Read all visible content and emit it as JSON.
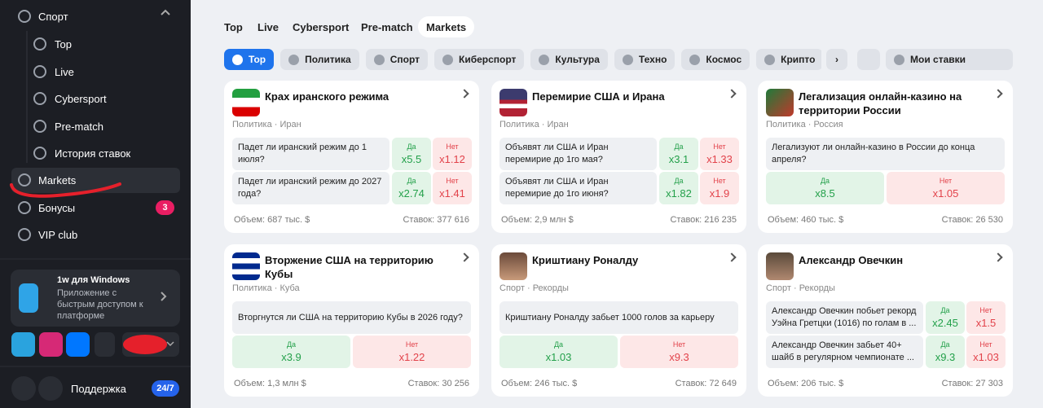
{
  "sidebar": {
    "sport": "Спорт",
    "items": [
      "Top",
      "Live",
      "Cybersport",
      "Pre-match",
      "История ставок"
    ],
    "main_items": [
      {
        "label": "Markets"
      },
      {
        "label": "Бонусы",
        "badge": "3"
      },
      {
        "label": "VIP club"
      }
    ],
    "promo": {
      "title": "1w для Windows",
      "text": "Приложение с быстрым доступом к платформе"
    },
    "support": {
      "label": "Поддержка",
      "badge": "24/7"
    }
  },
  "tabs": {
    "items": [
      "Top",
      "Live",
      "Cybersport",
      "Pre-match",
      "Markets"
    ],
    "active": 4
  },
  "filters": {
    "items": [
      "Top",
      "Политика",
      "Спорт",
      "Киберспорт",
      "Культура",
      "Техно",
      "Космос",
      "Крипто"
    ],
    "active": 0,
    "my_bets": "Мои ставки"
  },
  "cards": [
    {
      "title": "Крах иранского режима",
      "category": "Политика · Иран",
      "markets": [
        {
          "question": "Падет ли иранский режим до 1 июля?",
          "yes": "Да",
          "yes_odds": "x5.5",
          "no": "Нет",
          "no_odds": "x1.12"
        },
        {
          "question": "Падет ли иранский режим до 2027 года?",
          "yes": "Да",
          "yes_odds": "x2.74",
          "no": "Нет",
          "no_odds": "x1.41"
        }
      ],
      "volume": "Объем: 687 тыс. $",
      "bets": "Ставок: 377 616"
    },
    {
      "title": "Перемирие США и Ирана",
      "category": "Политика · Иран",
      "markets": [
        {
          "question": "Объявят ли США и Иран перемирие до 1го мая?",
          "yes": "Да",
          "yes_odds": "x3.1",
          "no": "Нет",
          "no_odds": "x1.33"
        },
        {
          "question": "Объявят ли США и Иран перемирие до 1го июня?",
          "yes": "Да",
          "yes_odds": "x1.82",
          "no": "Нет",
          "no_odds": "x1.9"
        }
      ],
      "volume": "Объем: 2,9 млн $",
      "bets": "Ставок: 216 235"
    },
    {
      "title": "Легализация онлайн-казино на территории России",
      "category": "Политика · Россия",
      "markets": [
        {
          "question": "Легализуют ли онлайн-казино в России до конца апреля?",
          "yes": "Да",
          "yes_odds": "x8.5",
          "no": "Нет",
          "no_odds": "x1.05"
        }
      ],
      "volume": "Объем: 460 тыс. $",
      "bets": "Ставок: 26 530"
    },
    {
      "title": "Вторжение США на территорию Кубы",
      "category": "Политика · Куба",
      "markets": [
        {
          "question": "Вторгнутся ли США на территорию Кубы в 2026 году?",
          "yes": "Да",
          "yes_odds": "x3.9",
          "no": "Нет",
          "no_odds": "x1.22"
        }
      ],
      "volume": "Объем: 1,3 млн $",
      "bets": "Ставок: 30 256"
    },
    {
      "title": "Криштиану Роналду",
      "category": "Спорт · Рекорды",
      "markets": [
        {
          "question": "Криштиану Роналду забьет 1000 голов за карьеру",
          "yes": "Да",
          "yes_odds": "x1.03",
          "no": "Нет",
          "no_odds": "x9.3"
        }
      ],
      "volume": "Объем: 246 тыс. $",
      "bets": "Ставок: 72 649"
    },
    {
      "title": "Александр Овечкин",
      "category": "Спорт · Рекорды",
      "markets": [
        {
          "question": "Александр Овечкин побьет рекорд Уэйна Гретцки (1016) по голам в ...",
          "yes": "Да",
          "yes_odds": "x2.45",
          "no": "Нет",
          "no_odds": "x1.5"
        },
        {
          "question": "Александр Овечкин забьет 40+ шайб в регулярном чемпионате ...",
          "yes": "Да",
          "yes_odds": "x9.3",
          "no": "Нет",
          "no_odds": "x1.03"
        }
      ],
      "volume": "Объем: 206 тыс. $",
      "bets": "Ставок: 27 303"
    }
  ]
}
